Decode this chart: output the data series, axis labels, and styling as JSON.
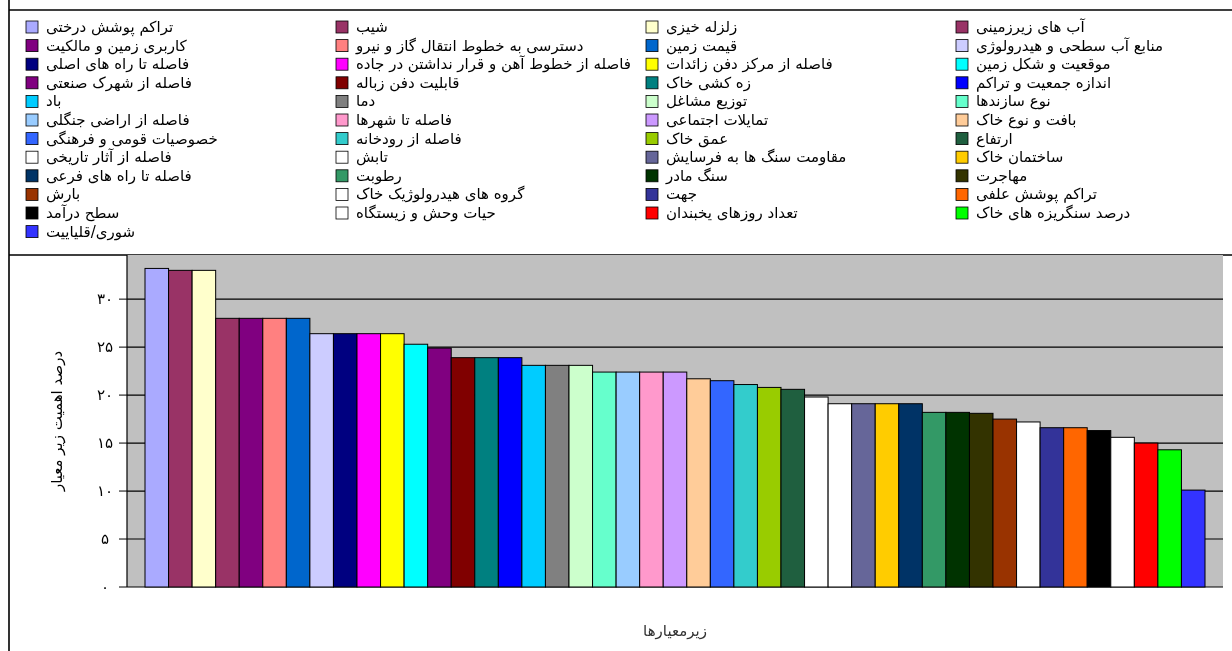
{
  "chart_data": {
    "type": "bar",
    "xlabel": "زیرمعیارها",
    "ylabel": "درصد اهمیت زیر معیار",
    "categories": [
      null
    ],
    "series": [
      {
        "name": "تراکم پوشش درختی",
        "color": "#aaaaff",
        "values": [
          33.2
        ]
      },
      {
        "name": "شیب",
        "color": "#993366",
        "values": [
          33.0
        ]
      },
      {
        "name": "زلزله خیزی",
        "color": "#ffffcc",
        "values": [
          33.0
        ]
      },
      {
        "name": "آب های زیرزمینی",
        "color": "#993366",
        "values": [
          28.0
        ]
      },
      {
        "name": "کاربری زمین و مالکیت",
        "color": "#800080",
        "values": [
          28.0
        ]
      },
      {
        "name": "دسترسی به خطوط انتقال گاز و نیرو",
        "color": "#ff8080",
        "values": [
          28.0
        ]
      },
      {
        "name": "قیمت زمین",
        "color": "#0066cc",
        "values": [
          28.0
        ]
      },
      {
        "name": "منابع آب سطحی و هیدرولوژی",
        "color": "#ccccff",
        "values": [
          26.4
        ]
      },
      {
        "name": "فاصله تا راه های اصلی",
        "color": "#000080",
        "values": [
          26.4
        ]
      },
      {
        "name": "فاصله از خطوط آهن و قرار نداشتن در جاده",
        "color": "#ff00ff",
        "values": [
          26.4
        ]
      },
      {
        "name": "فاصله از مرکز دفن زائدات",
        "color": "#ffff00",
        "values": [
          26.4
        ]
      },
      {
        "name": "موقعیت و شکل زمین",
        "color": "#00ffff",
        "values": [
          25.3
        ]
      },
      {
        "name": "فاصله از شهرک صنعتی",
        "color": "#800080",
        "values": [
          24.9
        ]
      },
      {
        "name": "قابلیت دفن زباله",
        "color": "#800000",
        "values": [
          23.9
        ]
      },
      {
        "name": "زه کشی خاک",
        "color": "#008080",
        "values": [
          23.9
        ]
      },
      {
        "name": "اندازه جمعیت و تراکم",
        "color": "#0000ff",
        "values": [
          23.9
        ]
      },
      {
        "name": "باد",
        "color": "#00ccff",
        "values": [
          23.1
        ]
      },
      {
        "name": "دما",
        "color": "#808080",
        "values": [
          23.1
        ]
      },
      {
        "name": "توزیع مشاغل",
        "color": "#ccffcc",
        "values": [
          23.1
        ]
      },
      {
        "name": "نوع سازندها",
        "color": "#66ffcc",
        "values": [
          22.4
        ]
      },
      {
        "name": "فاصله از اراضی جنگلی",
        "color": "#99ccff",
        "values": [
          22.4
        ]
      },
      {
        "name": "فاصله تا شهرها",
        "color": "#ff99cc",
        "values": [
          22.4
        ]
      },
      {
        "name": "تمایلات اجتماعی",
        "color": "#cc99ff",
        "values": [
          22.4
        ]
      },
      {
        "name": "بافت و نوع خاک",
        "color": "#ffcc99",
        "values": [
          21.7
        ]
      },
      {
        "name": "خصوصیات قومی و فرهنگی",
        "color": "#3366ff",
        "values": [
          21.5
        ]
      },
      {
        "name": "فاصله از رودخانه",
        "color": "#33cccc",
        "values": [
          21.1
        ]
      },
      {
        "name": "عمق خاک",
        "color": "#99cc00",
        "values": [
          20.8
        ]
      },
      {
        "name": "ارتفاع",
        "color": "#1f5f3f",
        "values": [
          20.6
        ]
      },
      {
        "name": "فاصله از آثار تاریخی",
        "color": "#ffffff",
        "values": [
          19.8
        ]
      },
      {
        "name": "تابش",
        "color": "#ffffff",
        "values": [
          19.1
        ]
      },
      {
        "name": "مقاومت سنگ ها به فرسایش",
        "color": "#666699",
        "values": [
          19.1
        ]
      },
      {
        "name": "ساختمان خاک",
        "color": "#ffcc00",
        "values": [
          19.1
        ]
      },
      {
        "name": "فاصله تا راه های فرعی",
        "color": "#003366",
        "values": [
          19.1
        ]
      },
      {
        "name": "رطوبت",
        "color": "#339966",
        "values": [
          18.2
        ]
      },
      {
        "name": "سنگ مادر",
        "color": "#003300",
        "values": [
          18.2
        ]
      },
      {
        "name": "مهاجرت",
        "color": "#333300",
        "values": [
          18.1
        ]
      },
      {
        "name": "بارش",
        "color": "#993300",
        "values": [
          17.5
        ]
      },
      {
        "name": "گروه های هیدرولوژیک خاک",
        "color": "#ffffff",
        "values": [
          17.2
        ]
      },
      {
        "name": "جهت",
        "color": "#333399",
        "values": [
          16.6
        ]
      },
      {
        "name": "تراکم پوشش علفی",
        "color": "#ff6600",
        "values": [
          16.6
        ]
      },
      {
        "name": "سطح درآمد",
        "color": "#000000",
        "values": [
          16.3
        ]
      },
      {
        "name": "حیات وحش و زیستگاه",
        "color": "#ffffff",
        "values": [
          15.6
        ]
      },
      {
        "name": "تعداد روزهای یخبندان",
        "color": "#ff0000",
        "values": [
          15.0
        ]
      },
      {
        "name": "درصد سنگریزه های خاک",
        "color": "#00ff00",
        "values": [
          14.3
        ]
      },
      {
        "name": "شوری/قلیاییت",
        "color": "#3333ff",
        "values": [
          10.1
        ]
      }
    ],
    "ylim": [
      0,
      34.6
    ],
    "yticks": [
      {
        "value": 0,
        "label": "۰"
      },
      {
        "value": 5,
        "label": "۵"
      },
      {
        "value": 10,
        "label": "۱۰"
      },
      {
        "value": 15,
        "label": "۱۵"
      },
      {
        "value": 20,
        "label": "۲۰"
      },
      {
        "value": 25,
        "label": "۲۵"
      },
      {
        "value": 30,
        "label": "۳۰"
      }
    ],
    "grid": "y",
    "legend": "top",
    "tick_labels": "y"
  }
}
